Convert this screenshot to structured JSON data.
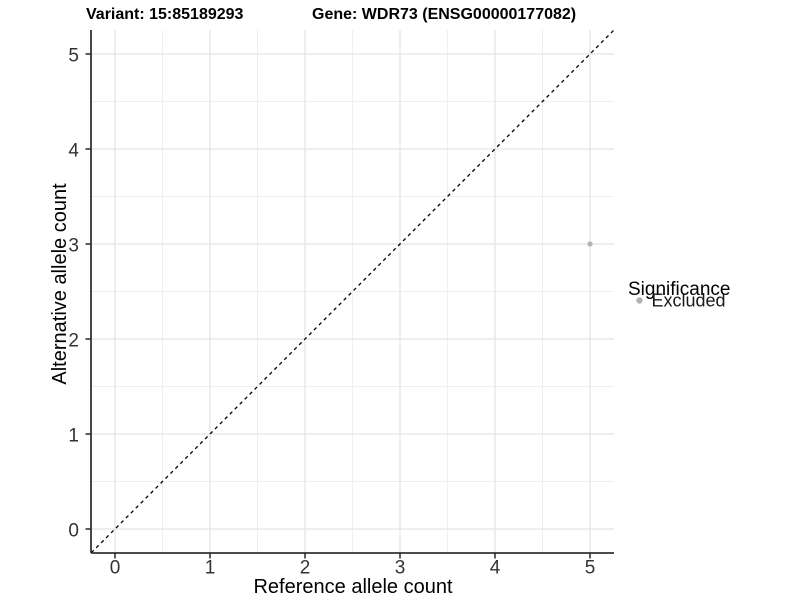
{
  "chart_data": {
    "type": "scatter",
    "titles": [
      "Variant: 15:85189293",
      "Gene: WDR73 (ENSG00000177082)"
    ],
    "xlabel": "Reference allele count",
    "ylabel": "Alternative allele count",
    "xlim": [
      -0.25,
      5.25
    ],
    "ylim": [
      -0.25,
      5.25
    ],
    "x_ticks": [
      0,
      1,
      2,
      3,
      4,
      5
    ],
    "y_ticks": [
      0,
      1,
      2,
      3,
      4,
      5
    ],
    "grid": true,
    "series": [
      {
        "name": "Excluded",
        "color": "#b3b3b3",
        "points": [
          {
            "x": 5,
            "y": 3
          }
        ]
      }
    ],
    "reference_line": {
      "equation": "y = x",
      "style": "dashed",
      "color": "#000000"
    },
    "legend": {
      "position": "right",
      "title": "Significance",
      "items": [
        {
          "label": "Excluded",
          "color": "#b3b3b3"
        }
      ]
    }
  },
  "colors": {
    "background": "#ffffff",
    "grid_major": "#e3e3e3",
    "grid_minor": "#efefef",
    "axis_line": "#333333",
    "tick_mark": "#333333",
    "tick_text": "#333333",
    "point": "#b3b3b3",
    "reference_line": "#000000"
  }
}
